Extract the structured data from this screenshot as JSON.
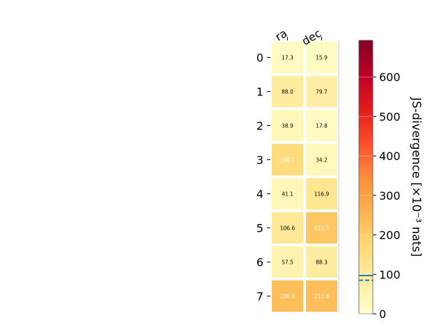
{
  "chart_data": {
    "type": "heatmap",
    "columns": [
      "ra",
      "dec"
    ],
    "rows": [
      "0",
      "1",
      "2",
      "3",
      "4",
      "5",
      "6",
      "7"
    ],
    "values": [
      [
        17.3,
        15.9
      ],
      [
        88.0,
        79.7
      ],
      [
        38.9,
        17.8
      ],
      [
        160.2,
        34.2
      ],
      [
        41.1,
        116.9
      ],
      [
        106.6,
        213.5
      ],
      [
        57.5,
        88.3
      ],
      [
        230.8,
        233.8
      ]
    ],
    "value_labels": [
      [
        "17.3",
        "15.9"
      ],
      [
        "88.0",
        "79.7"
      ],
      [
        "38.9",
        "17.8"
      ],
      [
        "160.2",
        "34.2"
      ],
      [
        "41.1",
        "116.9"
      ],
      [
        "106.6",
        "213.5"
      ],
      [
        "57.5",
        "88.3"
      ],
      [
        "230.8",
        "233.8"
      ]
    ],
    "colormap": "YlOrRd",
    "colorbar": {
      "label": "JS-divergence [×10⁻³ nats]",
      "range": [
        0,
        693
      ],
      "ticks": [
        0,
        100,
        200,
        300,
        400,
        500,
        600
      ],
      "tick_labels": [
        "0",
        "100",
        "200",
        "300",
        "400",
        "500",
        "600"
      ],
      "reference_lines": [
        {
          "value": 97,
          "style": "solid",
          "color": "#1f77b4"
        },
        {
          "value": 85,
          "style": "dashed",
          "color": "#1f77b4"
        }
      ]
    },
    "text_color_light": "#ffffff",
    "text_color_dark": "#000000",
    "text_color_threshold": 150
  }
}
